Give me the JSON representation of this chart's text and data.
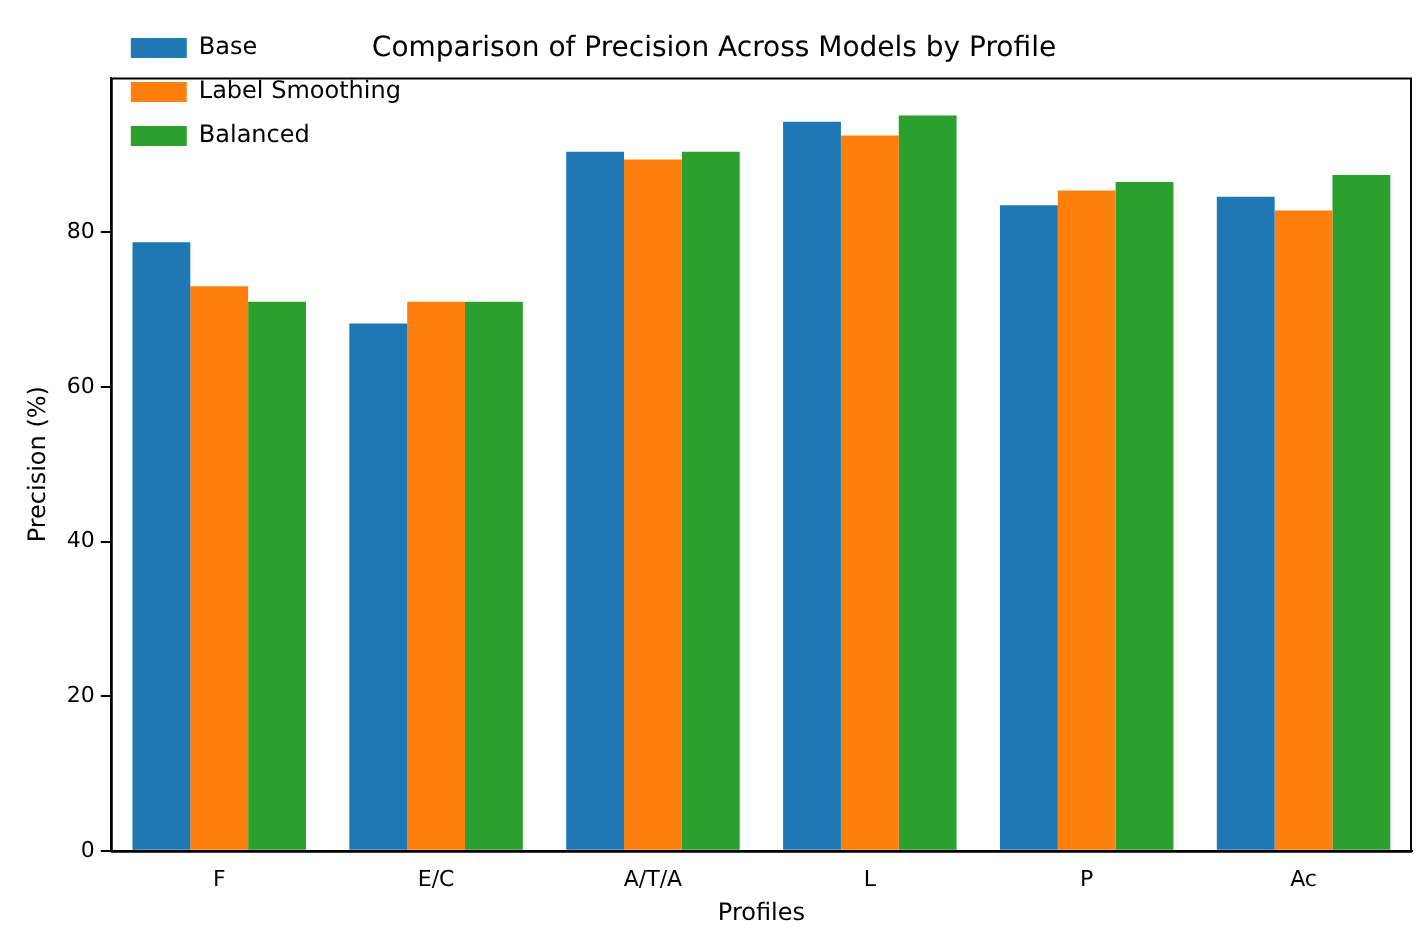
{
  "chart_data": {
    "type": "bar",
    "title": "Comparison of Precision Across Models by Profile",
    "xlabel": "Profiles",
    "ylabel": "Precision (%)",
    "categories": [
      "F",
      "E/C",
      "A/T/A",
      "L",
      "P",
      "Ac"
    ],
    "series": [
      {
        "name": "Base",
        "color": "#1f77b4",
        "values": [
          78.7,
          68.2,
          90.4,
          94.3,
          83.5,
          84.6
        ]
      },
      {
        "name": "Label Smoothing",
        "color": "#ff7f0e",
        "values": [
          73.0,
          71.0,
          89.4,
          92.5,
          85.4,
          82.8
        ]
      },
      {
        "name": "Balanced",
        "color": "#2ca02c",
        "values": [
          71.0,
          71.0,
          90.4,
          95.1,
          86.5,
          87.4
        ]
      }
    ],
    "ylim": [
      0,
      100
    ],
    "yticks": [
      0,
      20,
      40,
      60,
      80
    ],
    "grid": false,
    "legend": "top left"
  }
}
